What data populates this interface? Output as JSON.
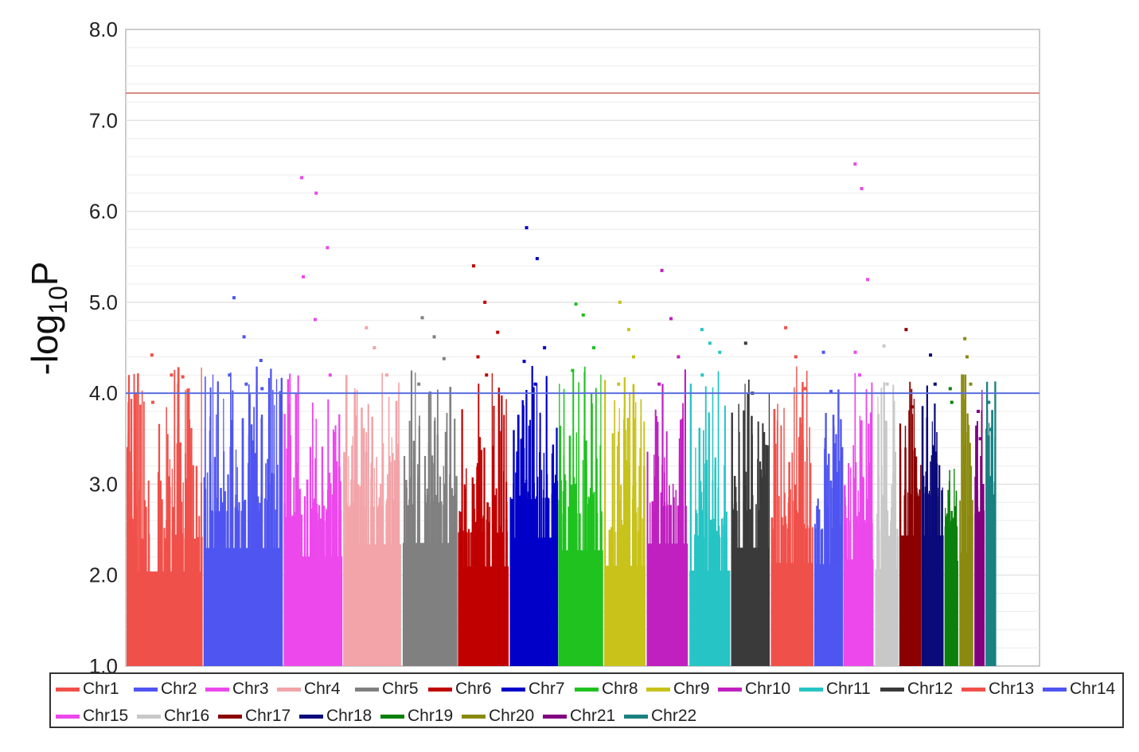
{
  "chart_data": {
    "type": "scatter",
    "title": "",
    "xlabel": "",
    "ylabel_main": "-log",
    "ylabel_sub": "10",
    "ylabel_tail": "P",
    "ylim": [
      1.0,
      8.0
    ],
    "yticks": [
      "1.0",
      "2.0",
      "3.0",
      "4.0",
      "5.0",
      "6.0",
      "7.0",
      "8.0"
    ],
    "grid": true,
    "legend_position": "bottom",
    "thresholds": [
      {
        "value": 7.3,
        "color": "#d98a84"
      },
      {
        "value": 4.0,
        "color": "#5a6ee0"
      }
    ],
    "series": [
      {
        "name": "Chr1",
        "color": "#f0504a",
        "top_points": [
          4.42,
          4.2,
          4.18,
          3.9
        ]
      },
      {
        "name": "Chr2",
        "color": "#4f55f0",
        "top_points": [
          5.05,
          4.62,
          4.36,
          4.2,
          4.1,
          4.05
        ]
      },
      {
        "name": "Chr3",
        "color": "#ec48ec",
        "top_points": [
          6.37,
          6.2,
          5.6,
          5.28,
          4.81,
          4.2
        ]
      },
      {
        "name": "Chr4",
        "color": "#f2a4a8",
        "top_points": [
          4.72,
          4.5,
          4.2
        ]
      },
      {
        "name": "Chr5",
        "color": "#808080",
        "top_points": [
          4.83,
          4.62,
          4.38,
          4.1
        ]
      },
      {
        "name": "Chr6",
        "color": "#c00000",
        "top_points": [
          5.4,
          5.0,
          4.67,
          4.4,
          4.2
        ]
      },
      {
        "name": "Chr7",
        "color": "#0000c8",
        "top_points": [
          5.82,
          5.48,
          4.5,
          4.35,
          4.1
        ]
      },
      {
        "name": "Chr8",
        "color": "#1fc21f",
        "top_points": [
          4.98,
          4.86,
          4.5,
          4.25
        ]
      },
      {
        "name": "Chr9",
        "color": "#c8c21a",
        "top_points": [
          5.0,
          4.7,
          4.4,
          4.1
        ]
      },
      {
        "name": "Chr10",
        "color": "#c020c0",
        "top_points": [
          5.35,
          4.82,
          4.4,
          4.1
        ]
      },
      {
        "name": "Chr11",
        "color": "#26c4c4",
        "top_points": [
          4.7,
          4.55,
          4.45,
          4.2
        ]
      },
      {
        "name": "Chr12",
        "color": "#3a3a3a",
        "top_points": [
          4.55,
          4.0
        ]
      },
      {
        "name": "Chr13",
        "color": "#f0504a",
        "top_points": [
          4.72,
          4.4,
          4.05
        ]
      },
      {
        "name": "Chr14",
        "color": "#4f55f0",
        "top_points": [
          4.45,
          4.02
        ]
      },
      {
        "name": "Chr15",
        "color": "#ec48ec",
        "top_points": [
          6.52,
          6.25,
          5.25,
          4.45,
          4.2
        ]
      },
      {
        "name": "Chr16",
        "color": "#c8c8c8",
        "top_points": [
          4.52,
          4.1
        ]
      },
      {
        "name": "Chr17",
        "color": "#8b0000",
        "top_points": [
          4.7,
          3.85
        ]
      },
      {
        "name": "Chr18",
        "color": "#0a0a7a",
        "top_points": [
          4.42,
          4.1
        ]
      },
      {
        "name": "Chr19",
        "color": "#0c800c",
        "top_points": [
          4.05,
          3.9
        ]
      },
      {
        "name": "Chr20",
        "color": "#8a8a10",
        "top_points": [
          4.6,
          4.4,
          4.1
        ]
      },
      {
        "name": "Chr21",
        "color": "#800080",
        "top_points": [
          3.8,
          3.5
        ]
      },
      {
        "name": "Chr22",
        "color": "#1a8080",
        "top_points": [
          3.9,
          3.6
        ]
      }
    ]
  }
}
